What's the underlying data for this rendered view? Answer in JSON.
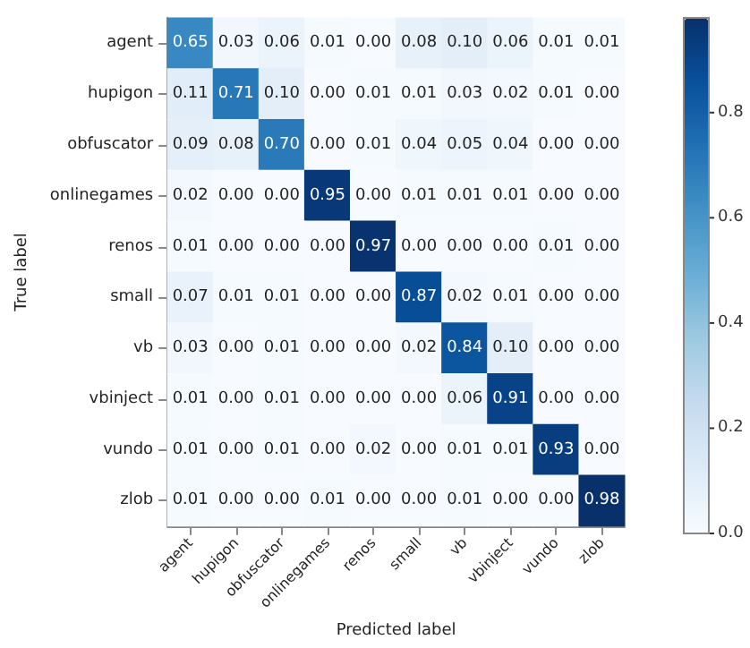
{
  "chart_data": {
    "type": "heatmap",
    "xlabel": "Predicted label",
    "ylabel": "True label",
    "categories": [
      "agent",
      "hupigon",
      "obfuscator",
      "onlinegames",
      "renos",
      "small",
      "vb",
      "vbinject",
      "vundo",
      "zlob"
    ],
    "y_categories": [
      "agent",
      "hupigon",
      "obfuscator",
      "onlinegames",
      "renos",
      "small",
      "vb",
      "vbinject",
      "vundo",
      "zlob"
    ],
    "cells": [
      [
        0.65,
        0.03,
        0.06,
        0.01,
        0,
        0.08,
        0.1,
        0.06,
        0.01,
        0.01
      ],
      [
        0.11,
        0.71,
        0.1,
        0,
        0.01,
        0.01,
        0.03,
        0.02,
        0.01,
        0
      ],
      [
        0.09,
        0.08,
        0.7,
        0,
        0.01,
        0.04,
        0.05,
        0.04,
        0,
        0
      ],
      [
        0.02,
        0,
        0,
        0.95,
        0,
        0.01,
        0.01,
        0.01,
        0,
        0
      ],
      [
        0.01,
        0,
        0,
        0,
        0.97,
        0,
        0,
        0,
        0.01,
        0
      ],
      [
        0.07,
        0.01,
        0.01,
        0,
        0,
        0.87,
        0.02,
        0.01,
        0,
        0
      ],
      [
        0.03,
        0,
        0.01,
        0,
        0,
        0.02,
        0.84,
        0.1,
        0,
        0
      ],
      [
        0.01,
        0,
        0.01,
        0,
        0,
        0,
        0.06,
        0.91,
        0,
        0
      ],
      [
        0.01,
        0,
        0.01,
        0,
        0.02,
        0,
        0.01,
        0.01,
        0.93,
        0
      ],
      [
        0.01,
        0,
        0,
        0.01,
        0,
        0,
        0.01,
        0,
        0,
        0.98
      ]
    ],
    "cell_labels": [
      [
        "0.65",
        "0.03",
        "0.06",
        "0.01",
        "0.00",
        "0.08",
        "0.10",
        "0.06",
        "0.01",
        "0.01"
      ],
      [
        "0.11",
        "0.71",
        "0.10",
        "0.00",
        "0.01",
        "0.01",
        "0.03",
        "0.02",
        "0.01",
        "0.00"
      ],
      [
        "0.09",
        "0.08",
        "0.70",
        "0.00",
        "0.01",
        "0.04",
        "0.05",
        "0.04",
        "0.00",
        "0.00"
      ],
      [
        "0.02",
        "0.00",
        "0.00",
        "0.95",
        "0.00",
        "0.01",
        "0.01",
        "0.01",
        "0.00",
        "0.00"
      ],
      [
        "0.01",
        "0.00",
        "0.00",
        "0.00",
        "0.97",
        "0.00",
        "0.00",
        "0.00",
        "0.01",
        "0.00"
      ],
      [
        "0.07",
        "0.01",
        "0.01",
        "0.00",
        "0.00",
        "0.87",
        "0.02",
        "0.01",
        "0.00",
        "0.00"
      ],
      [
        "0.03",
        "0.00",
        "0.01",
        "0.00",
        "0.00",
        "0.02",
        "0.84",
        "0.10",
        "0.00",
        "0.00"
      ],
      [
        "0.01",
        "0.00",
        "0.01",
        "0.00",
        "0.00",
        "0.00",
        "0.06",
        "0.91",
        "0.00",
        "0.00"
      ],
      [
        "0.01",
        "0.00",
        "0.01",
        "0.00",
        "0.02",
        "0.00",
        "0.01",
        "0.01",
        "0.93",
        "0.00"
      ],
      [
        "0.01",
        "0.00",
        "0.00",
        "0.01",
        "0.00",
        "0.00",
        "0.01",
        "0.00",
        "0.00",
        "0.98"
      ]
    ],
    "clim": [
      0,
      0.98
    ],
    "cticks": [
      {
        "value": 0,
        "label": "0.0"
      },
      {
        "value": 0.2,
        "label": "0.2"
      },
      {
        "value": 0.4,
        "label": "0.4"
      },
      {
        "value": 0.6,
        "label": "0.6"
      },
      {
        "value": 0.8,
        "label": "0.8"
      }
    ]
  }
}
